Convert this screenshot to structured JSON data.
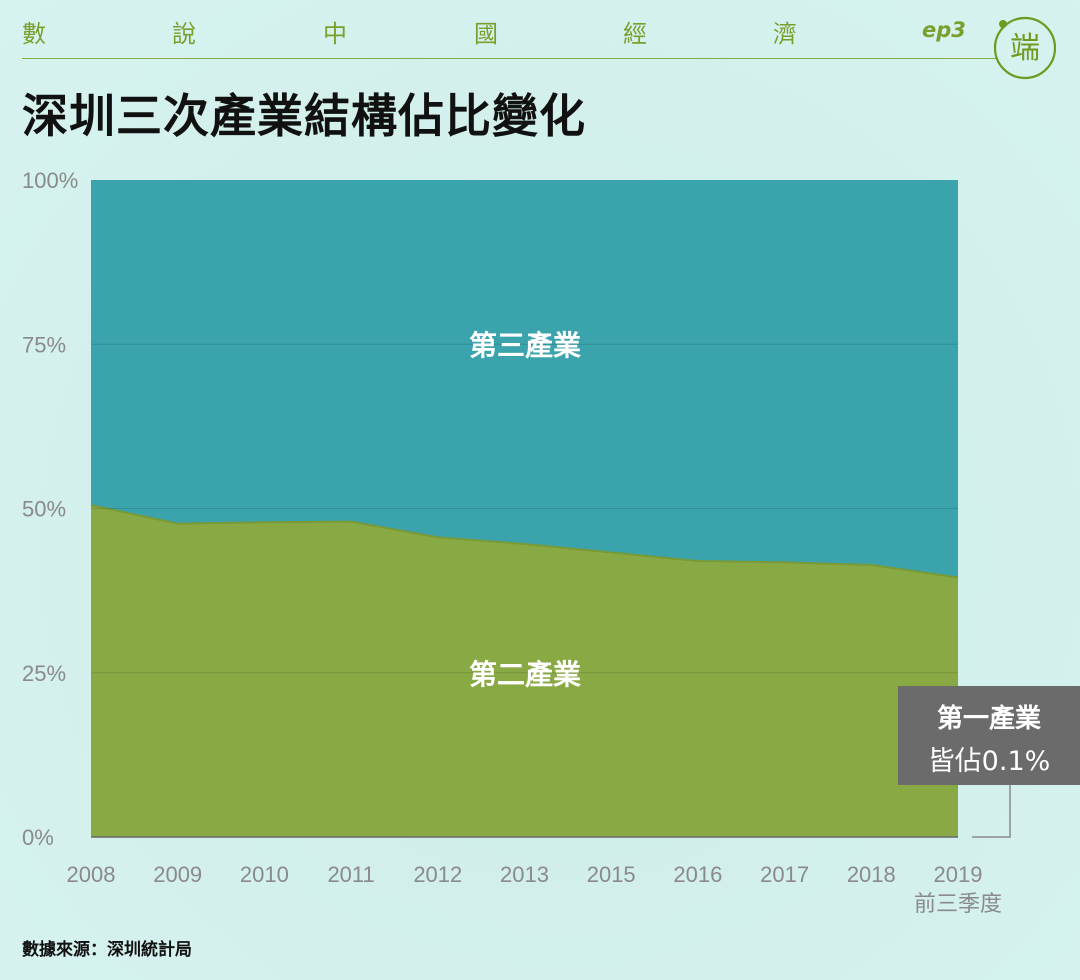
{
  "header": {
    "series_chars": [
      "數",
      "說",
      "中",
      "國",
      "經",
      "濟"
    ],
    "episode": "ep3",
    "logo_name": "端"
  },
  "colors": {
    "tertiary": "#3aa3ab",
    "secondary": "#89a944",
    "accent": "#7a9f2c",
    "callout_bg": "#6b6b6b"
  },
  "chart_data": {
    "type": "area",
    "title": "深圳三次產業結構佔比變化",
    "categories": [
      "2008",
      "2009",
      "2010",
      "2011",
      "2012",
      "2013",
      "2015",
      "2016",
      "2017",
      "2018",
      "2019"
    ],
    "x_sublabel_last": "前三季度",
    "y_ticks": [
      "0%",
      "25%",
      "50%",
      "75%",
      "100%"
    ],
    "ylim": [
      0,
      100
    ],
    "stacked": true,
    "series": [
      {
        "name": "第一產業",
        "values": [
          0.1,
          0.1,
          0.1,
          0.1,
          0.1,
          0.1,
          0.1,
          0.1,
          0.1,
          0.1,
          0.1
        ]
      },
      {
        "name": "第二產業",
        "values": [
          50.4,
          47.6,
          47.8,
          47.9,
          45.5,
          44.5,
          43.2,
          41.9,
          41.7,
          41.3,
          39.4
        ]
      },
      {
        "name": "第三產業",
        "values": [
          49.5,
          52.3,
          52.1,
          52.0,
          54.4,
          55.4,
          56.7,
          58.0,
          58.2,
          58.6,
          60.5
        ]
      }
    ],
    "series_labels": {
      "tertiary": "第三產業",
      "secondary": "第二產業"
    },
    "callout": {
      "line1": "第一產業",
      "line2": "皆佔0.1%"
    },
    "grid": true
  },
  "source": "數據來源：深圳統計局"
}
